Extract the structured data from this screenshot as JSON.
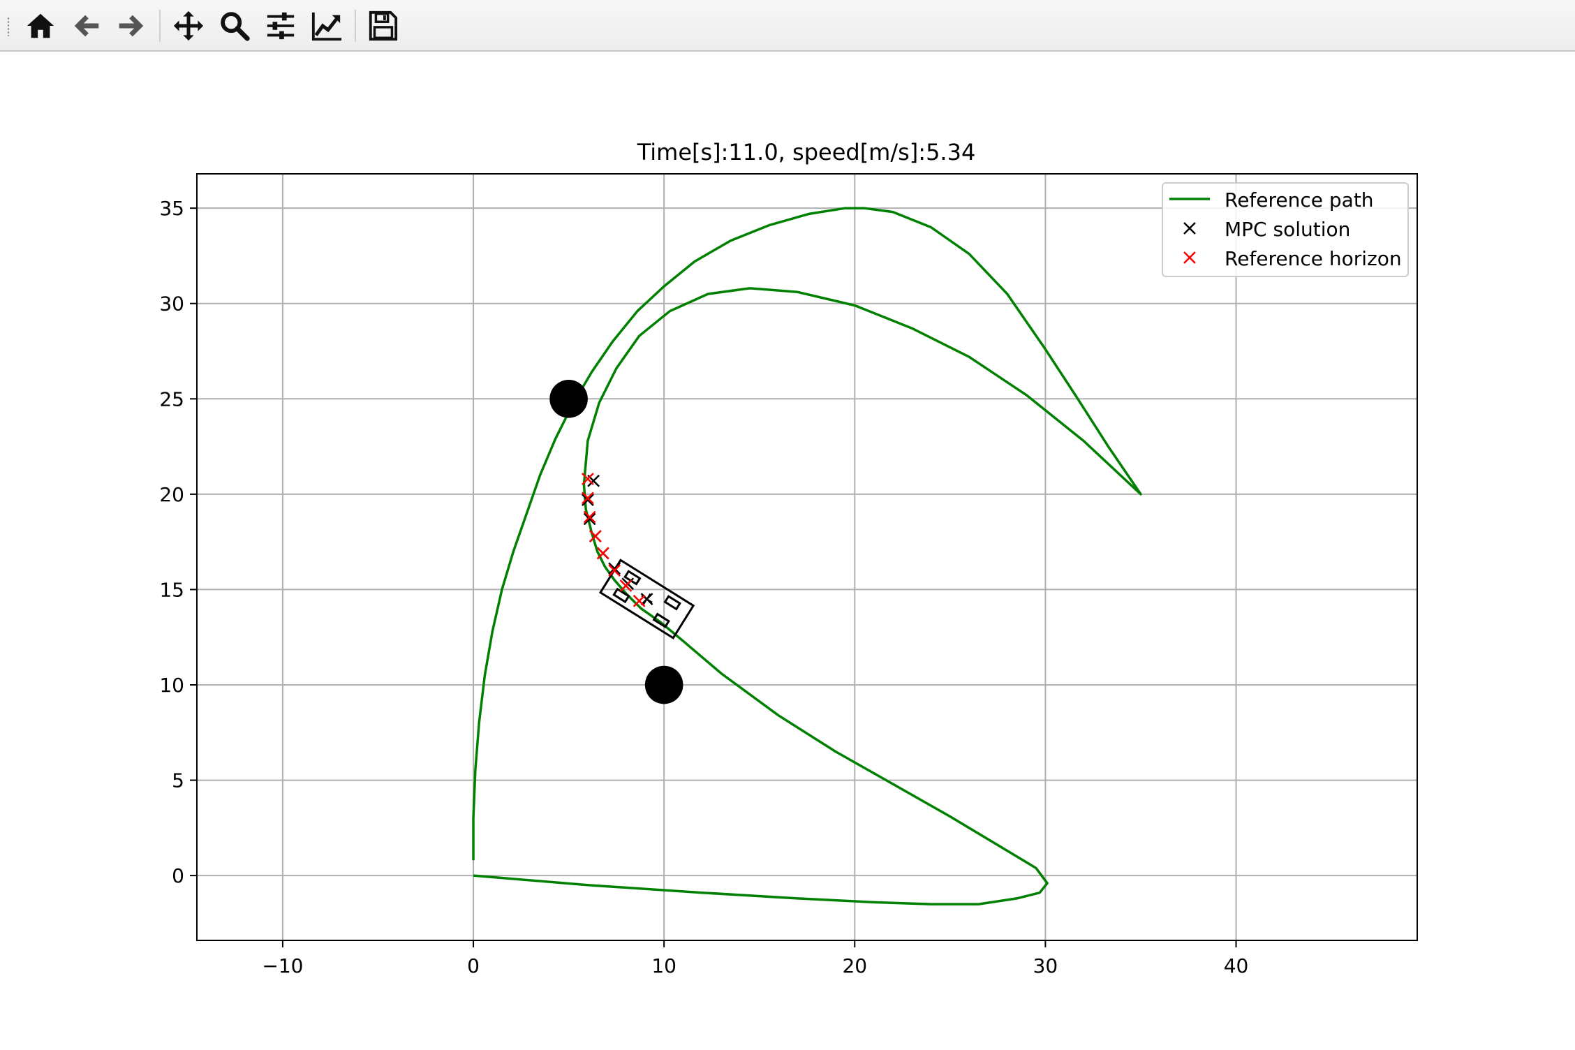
{
  "toolbar": {
    "tools": [
      {
        "name": "home-icon"
      },
      {
        "name": "back-arrow-icon"
      },
      {
        "name": "forward-arrow-icon"
      },
      {
        "name": "pan-move-icon"
      },
      {
        "name": "zoom-magnifier-icon"
      },
      {
        "name": "subplots-sliders-icon"
      },
      {
        "name": "edit-axis-chart-icon"
      },
      {
        "name": "save-floppy-icon"
      }
    ]
  },
  "chart_data": {
    "type": "line",
    "title": "Time[s]:11.0, speed[m/s]:5.34",
    "xlabel": "",
    "ylabel": "",
    "xlim": [
      -14.5,
      49.5
    ],
    "ylim": [
      -3.4,
      36.8
    ],
    "xticks": [
      -10,
      0,
      10,
      20,
      30,
      40
    ],
    "xtick_labels": [
      "−10",
      "0",
      "10",
      "20",
      "30",
      "40"
    ],
    "yticks": [
      0,
      5,
      10,
      15,
      20,
      25,
      30,
      35
    ],
    "ytick_labels": [
      "0",
      "5",
      "10",
      "15",
      "20",
      "25",
      "30",
      "35"
    ],
    "grid": true,
    "legend_position": "top-right",
    "colors": {
      "reference_path": "#008000",
      "mpc_solution": "#000000",
      "reference_horizon": "#ff0000",
      "axes": "#000000",
      "grid": "#b0b0b0"
    },
    "series": [
      {
        "name": "Reference path",
        "style": "line",
        "color": "#008000",
        "x": [
          0.0,
          0.0,
          0.1,
          0.3,
          0.6,
          1.0,
          1.5,
          2.1,
          2.8,
          3.5,
          4.3,
          5.2,
          6.2,
          7.3,
          8.6,
          10.0,
          11.6,
          13.5,
          15.5,
          17.6,
          19.5,
          20.5,
          22.0,
          24.0,
          26.0,
          28.0,
          30.0,
          31.7,
          33.3,
          35.0,
          32.0,
          29.0,
          26.0,
          23.0,
          20.0,
          17.0,
          14.5,
          12.3,
          10.3,
          8.7,
          7.5,
          6.6,
          6.0,
          5.8,
          5.9,
          6.2,
          6.5,
          6.9,
          7.4,
          8.0,
          8.8,
          9.8,
          11.0,
          13.0,
          16.0,
          19.0,
          22.0,
          25.0,
          28.0,
          29.5,
          30.1,
          29.7,
          28.5,
          26.5,
          24.0,
          21.0,
          17.0,
          12.0,
          6.0,
          0.0
        ],
        "y": [
          0.8,
          3.0,
          5.5,
          8.0,
          10.5,
          12.8,
          15.0,
          17.0,
          19.0,
          21.0,
          22.9,
          24.7,
          26.4,
          28.0,
          29.6,
          30.9,
          32.2,
          33.3,
          34.1,
          34.7,
          35.0,
          35.0,
          34.8,
          34.0,
          32.6,
          30.5,
          27.6,
          25.0,
          22.5,
          20.0,
          22.8,
          25.2,
          27.2,
          28.7,
          29.9,
          30.6,
          30.8,
          30.5,
          29.6,
          28.3,
          26.6,
          24.8,
          22.8,
          20.5,
          19.2,
          18.0,
          17.0,
          16.2,
          15.5,
          14.8,
          14.0,
          13.3,
          12.3,
          10.6,
          8.4,
          6.5,
          4.8,
          3.1,
          1.3,
          0.4,
          -0.4,
          -0.9,
          -1.2,
          -1.5,
          -1.5,
          -1.4,
          -1.2,
          -0.9,
          -0.5,
          0.0
        ]
      },
      {
        "name": "MPC solution",
        "style": "x-marker",
        "color": "#000000",
        "x": [
          6.3,
          6.0,
          6.1,
          6.4,
          6.8,
          7.4,
          8.1,
          9.1
        ],
        "y": [
          20.7,
          19.7,
          18.7,
          17.8,
          16.9,
          16.1,
          15.3,
          14.5
        ]
      },
      {
        "name": "Reference horizon",
        "style": "x-marker",
        "color": "#ff0000",
        "x": [
          6.0,
          6.0,
          6.1,
          6.4,
          6.8,
          7.4,
          8.0,
          8.7
        ],
        "y": [
          20.8,
          19.8,
          18.8,
          17.8,
          16.9,
          16.0,
          15.2,
          14.4
        ]
      }
    ],
    "obstacles": [
      {
        "x": 5.0,
        "y": 25.0,
        "radius": 1.0
      },
      {
        "x": 10.0,
        "y": 10.0,
        "radius": 1.0
      }
    ],
    "vehicle": {
      "x": 9.1,
      "y": 14.5,
      "heading_deg": -32,
      "length": 4.5,
      "width": 2.0
    }
  }
}
